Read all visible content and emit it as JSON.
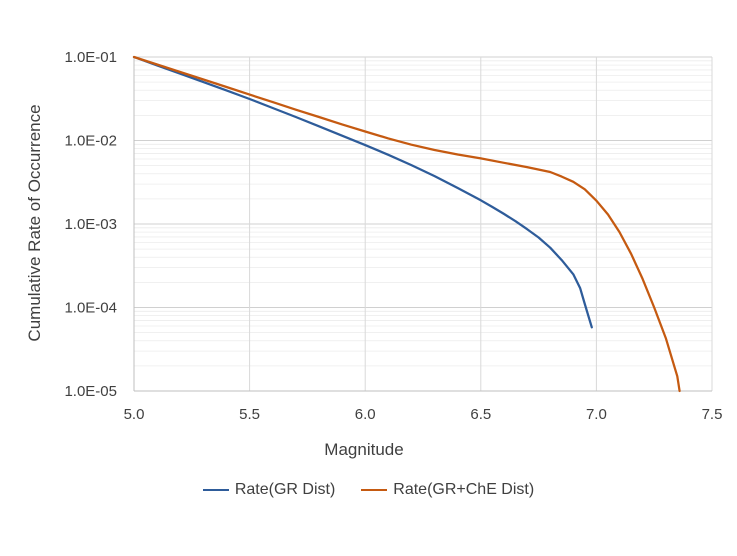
{
  "chart_data": {
    "type": "line",
    "title": "",
    "xlabel": "Magnitude",
    "ylabel": "Cumulative Rate of Occurrence",
    "xlim": [
      5.0,
      7.5
    ],
    "ylim": [
      1e-05,
      0.1
    ],
    "yscale": "log",
    "xticks": [
      "5.0",
      "5.5",
      "6.0",
      "6.5",
      "7.0",
      "7.5"
    ],
    "yticks": [
      "1.0E-01",
      "1.0E-02",
      "1.0E-03",
      "1.0E-04",
      "1.0E-05"
    ],
    "grid": "on (major and minor horizontal, vertical at x ticks)",
    "legend_position": "bottom",
    "series": [
      {
        "name": "Rate(GR Dist)",
        "color": "#2E5C9A",
        "points": [
          [
            5.0,
            0.1
          ],
          [
            5.1,
            0.0794
          ],
          [
            5.2,
            0.0631
          ],
          [
            5.3,
            0.0501
          ],
          [
            5.4,
            0.0398
          ],
          [
            5.5,
            0.0314
          ],
          [
            5.6,
            0.0245
          ],
          [
            5.7,
            0.0191
          ],
          [
            5.8,
            0.0148
          ],
          [
            5.9,
            0.0114
          ],
          [
            6.0,
            0.0088
          ],
          [
            6.1,
            0.00675
          ],
          [
            6.2,
            0.00508
          ],
          [
            6.3,
            0.00375
          ],
          [
            6.4,
            0.0027
          ],
          [
            6.5,
            0.00192
          ],
          [
            6.55,
            0.0016
          ],
          [
            6.6,
            0.00132
          ],
          [
            6.65,
            0.00108
          ],
          [
            6.7,
            0.00087
          ],
          [
            6.75,
            0.00069
          ],
          [
            6.8,
            0.00052
          ],
          [
            6.85,
            0.00037
          ],
          [
            6.9,
            0.00025
          ],
          [
            6.93,
            0.00017
          ],
          [
            6.95,
            0.00011
          ],
          [
            6.98,
            5.8e-05
          ]
        ]
      },
      {
        "name": "Rate(GR+ChE Dist)",
        "color": "#C55A11",
        "points": [
          [
            5.0,
            0.1
          ],
          [
            5.1,
            0.0813
          ],
          [
            5.2,
            0.0661
          ],
          [
            5.3,
            0.0537
          ],
          [
            5.4,
            0.0437
          ],
          [
            5.5,
            0.0355
          ],
          [
            5.6,
            0.0288
          ],
          [
            5.7,
            0.0234
          ],
          [
            5.8,
            0.0191
          ],
          [
            5.9,
            0.0156
          ],
          [
            6.0,
            0.0128
          ],
          [
            6.1,
            0.0106
          ],
          [
            6.2,
            0.0089
          ],
          [
            6.3,
            0.0077
          ],
          [
            6.4,
            0.0068
          ],
          [
            6.5,
            0.0061
          ],
          [
            6.6,
            0.0054
          ],
          [
            6.7,
            0.0048
          ],
          [
            6.8,
            0.0042
          ],
          [
            6.85,
            0.0037
          ],
          [
            6.9,
            0.0032
          ],
          [
            6.95,
            0.0026
          ],
          [
            7.0,
            0.0019
          ],
          [
            7.05,
            0.0013
          ],
          [
            7.1,
            0.0008
          ],
          [
            7.15,
            0.00044
          ],
          [
            7.2,
            0.00022
          ],
          [
            7.25,
            0.0001
          ],
          [
            7.3,
            4.3e-05
          ],
          [
            7.35,
            1.5e-05
          ],
          [
            7.36,
            1e-05
          ]
        ]
      }
    ]
  }
}
